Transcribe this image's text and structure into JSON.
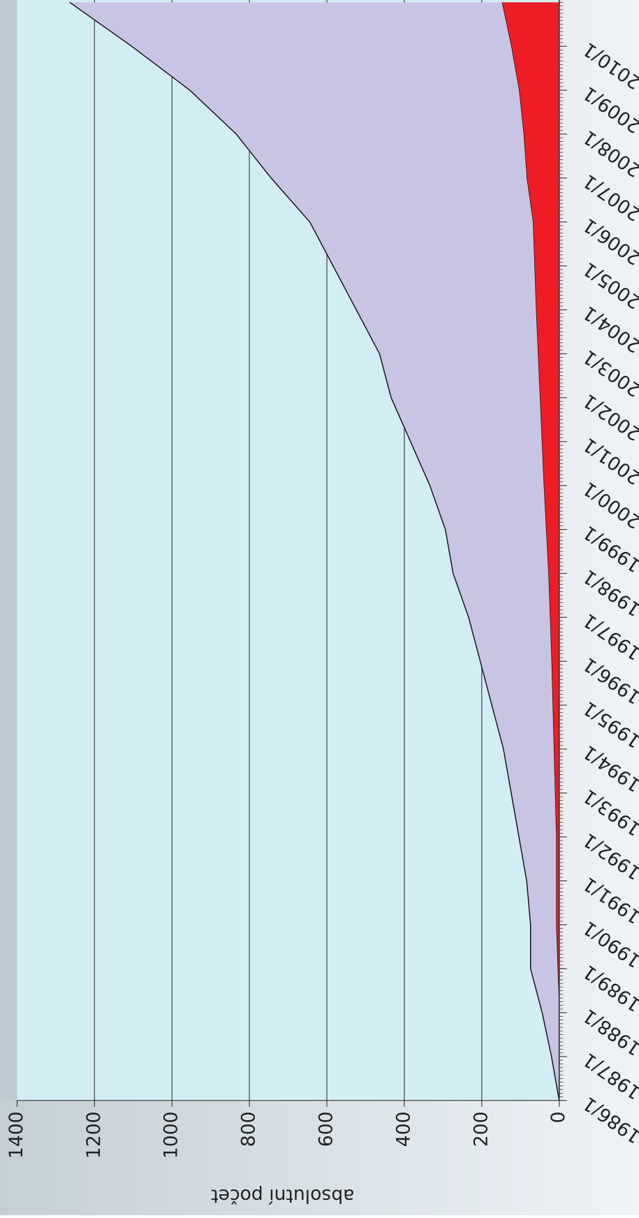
{
  "chart_data": {
    "type": "stacked-area",
    "y_label": "absolutní počet",
    "x": [
      1986,
      1987,
      1988,
      1989,
      1990,
      1991,
      1992,
      1993,
      1994,
      1995,
      1996,
      1997,
      1998,
      1999,
      2000,
      2001,
      2002,
      2003,
      2004,
      2005,
      2006,
      2007,
      2008,
      2009,
      2010,
      2011
    ],
    "series": [
      {
        "color": "#ee1c24",
        "values": [
          0,
          0,
          0,
          4,
          8,
          8,
          8,
          11,
          14,
          17,
          20,
          24,
          28,
          34,
          40,
          45,
          50,
          55,
          60,
          64,
          68,
          84,
          92,
          104,
          124,
          148
        ]
      },
      {
        "color": "#c8c4e4",
        "values": [
          0,
          20,
          44,
          70,
          66,
          76,
          96,
          113,
          130,
          157,
          184,
          210,
          246,
          260,
          294,
          339,
          384,
          409,
          464,
          520,
          576,
          660,
          742,
          850,
          980,
          1116
        ]
      }
    ],
    "xlim": [
      1986,
      2011
    ],
    "xticks": [
      {
        "value": 1986,
        "label": "1986/1"
      },
      {
        "value": 1987,
        "label": "1987/1"
      },
      {
        "value": 1988,
        "label": "1988/1"
      },
      {
        "value": 1989,
        "label": "1989/1"
      },
      {
        "value": 1990,
        "label": "1990/1"
      },
      {
        "value": 1991,
        "label": "1991/1"
      },
      {
        "value": 1992,
        "label": "1992/1"
      },
      {
        "value": 1993,
        "label": "1993/1"
      },
      {
        "value": 1994,
        "label": "1994/1"
      },
      {
        "value": 1995,
        "label": "1995/1"
      },
      {
        "value": 1996,
        "label": "1996/1"
      },
      {
        "value": 1997,
        "label": "1997/1"
      },
      {
        "value": 1998,
        "label": "1998/1"
      },
      {
        "value": 1999,
        "label": "1999/1"
      },
      {
        "value": 2000,
        "label": "2000/1"
      },
      {
        "value": 2001,
        "label": "2001/1"
      },
      {
        "value": 2002,
        "label": "2002/1"
      },
      {
        "value": 2003,
        "label": "2003/1"
      },
      {
        "value": 2004,
        "label": "2004/1"
      },
      {
        "value": 2005,
        "label": "2005/1"
      },
      {
        "value": 2006,
        "label": "2006/1"
      },
      {
        "value": 2007,
        "label": "2007/1"
      },
      {
        "value": 2008,
        "label": "2008/1"
      },
      {
        "value": 2009,
        "label": "2009/1"
      },
      {
        "value": 2010,
        "label": "2010/1"
      }
    ],
    "ylim": [
      0,
      1400
    ],
    "yticks": [
      0,
      200,
      400,
      600,
      800,
      1000,
      1200,
      1400
    ],
    "grid": true
  }
}
